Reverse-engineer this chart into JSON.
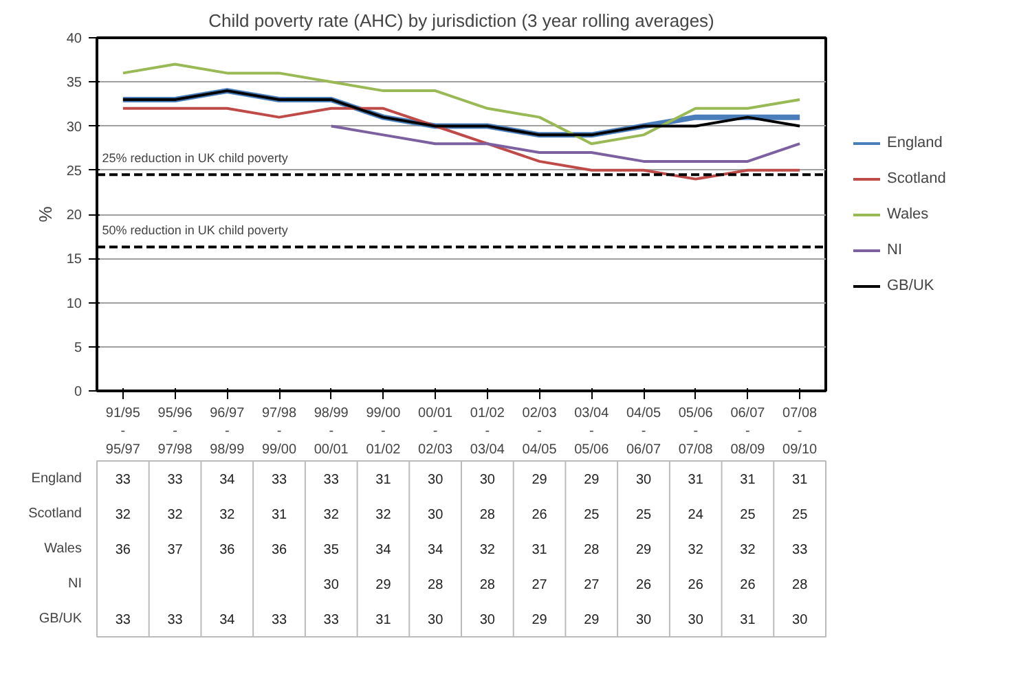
{
  "chart_data": {
    "type": "line",
    "title": "Child poverty rate (AHC) by jurisdiction (3 year rolling averages)",
    "ylabel": "%",
    "categories": [
      "91/95\n-\n95/97",
      "95/96\n-\n97/98",
      "96/97\n-\n98/99",
      "97/98\n-\n99/00",
      "98/99\n-\n00/01",
      "99/00\n-\n01/02",
      "00/01\n-\n02/03",
      "01/02\n-\n03/04",
      "02/03\n-\n04/05",
      "03/04\n-\n05/06",
      "04/05\n-\n06/07",
      "05/06\n-\n07/08",
      "06/07\n-\n08/09",
      "07/08\n-\n09/10"
    ],
    "series": [
      {
        "name": "England",
        "color": "#4a7ebb",
        "values": [
          33,
          33,
          34,
          33,
          33,
          31,
          30,
          30,
          29,
          29,
          30,
          31,
          31,
          31
        ]
      },
      {
        "name": "Scotland",
        "color": "#be4b48",
        "values": [
          32,
          32,
          32,
          31,
          32,
          32,
          30,
          28,
          26,
          25,
          25,
          24,
          25,
          25
        ]
      },
      {
        "name": "Wales",
        "color": "#98b954",
        "values": [
          36,
          37,
          36,
          36,
          35,
          34,
          34,
          32,
          31,
          28,
          29,
          32,
          32,
          33
        ]
      },
      {
        "name": "NI",
        "color": "#7d60a0",
        "values": [
          null,
          null,
          null,
          null,
          30,
          29,
          28,
          28,
          27,
          27,
          26,
          26,
          26,
          28
        ]
      },
      {
        "name": "GB/UK",
        "color": "#000000",
        "values": [
          33,
          33,
          34,
          33,
          33,
          31,
          30,
          30,
          29,
          29,
          30,
          30,
          31,
          30
        ]
      }
    ],
    "ylim": [
      0,
      40
    ],
    "yticks": [
      0,
      5,
      10,
      15,
      20,
      25,
      30,
      35,
      40
    ],
    "grid": "y",
    "legend": "right",
    "marker": "none",
    "line_style": "solid",
    "data_labels": true,
    "ref_lines": [
      {
        "axis": "y",
        "value": 24.5,
        "label": "25% reduction in UK child poverty",
        "color": "#000000",
        "line_style": "dashed"
      },
      {
        "axis": "y",
        "value": 16.3,
        "label": "50% reduction in UK child poverty",
        "color": "#000000",
        "line_style": "dashed"
      }
    ]
  }
}
